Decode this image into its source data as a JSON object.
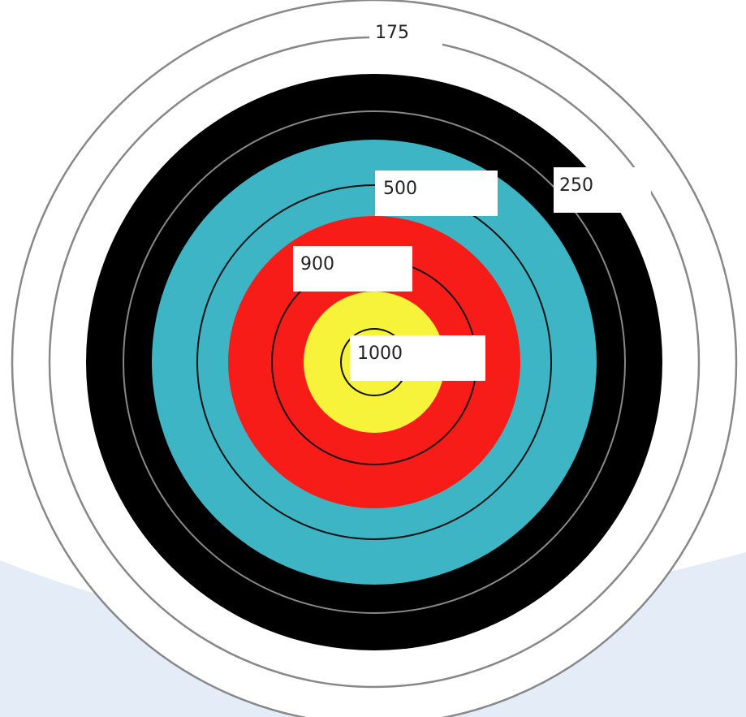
{
  "colors": {
    "background_swoosh": "#e3ecf7",
    "white_ring": "#ffffff",
    "black_ring": "#000000",
    "blue_ring": "#3db5c5",
    "red_ring": "#f81c18",
    "gold_ring": "#f7f33a",
    "outer_line": "#888888",
    "inner_line": "#111111"
  },
  "labels": {
    "ring_175": "175",
    "ring_250": "250",
    "ring_500": "500",
    "ring_900": "900",
    "ring_1000": "1000"
  }
}
